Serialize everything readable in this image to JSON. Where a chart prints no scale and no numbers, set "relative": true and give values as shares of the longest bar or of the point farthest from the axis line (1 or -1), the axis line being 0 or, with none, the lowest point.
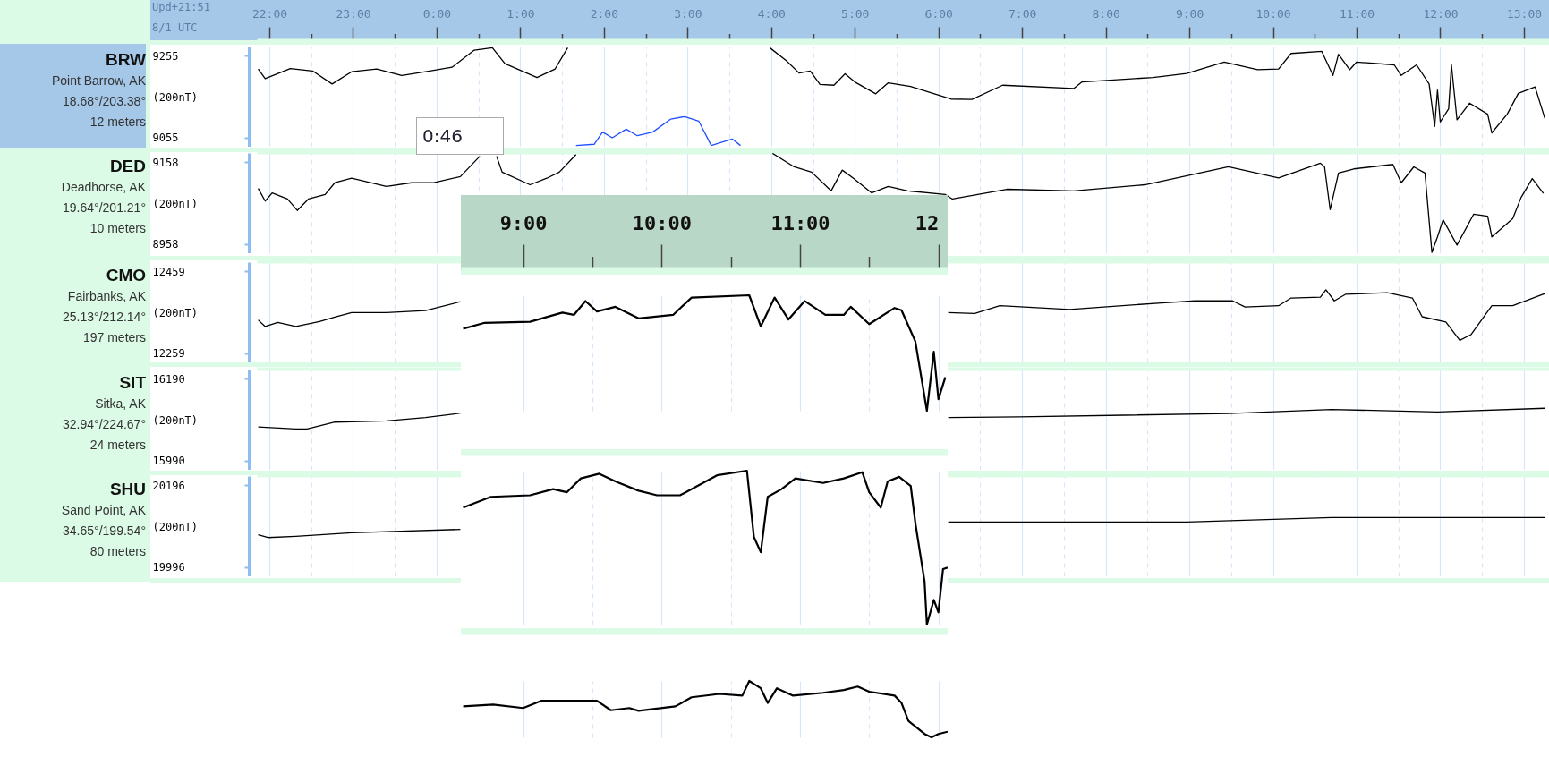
{
  "chart_data": [
    {
      "type": "line",
      "title": "BRW",
      "subtitle": "Point Barrow, AK",
      "ylabel": "(200nT)",
      "annotations": [
        "18.68°/203.38°",
        "12 meters",
        "Upd+21:51",
        "8/1 UTC",
        "0:46"
      ],
      "xlim": [
        "--08-01T21:51",
        "--08-02T13:18"
      ],
      "xticks": [
        {
          "value": "--08-01T22:00",
          "label": "22:00"
        },
        {
          "value": "--08-01T22:30",
          "label": null
        },
        {
          "value": "--08-01T23:00",
          "label": "23:00"
        },
        {
          "value": "--08-01T23:30",
          "label": null
        },
        {
          "value": "--08-02T00:00",
          "label": "0:00"
        },
        {
          "value": "--08-02T00:30",
          "label": null
        },
        {
          "value": "--08-02T01:00",
          "label": "1:00"
        },
        {
          "value": "--08-02T01:30",
          "label": null
        },
        {
          "value": "--08-02T02:00",
          "label": "2:00"
        },
        {
          "value": "--08-02T02:30",
          "label": null
        },
        {
          "value": "--08-02T03:00",
          "label": "3:00"
        },
        {
          "value": "--08-02T03:30",
          "label": null
        },
        {
          "value": "--08-02T04:00",
          "label": "4:00"
        },
        {
          "value": "--08-02T04:30",
          "label": null
        },
        {
          "value": "--08-02T05:00",
          "label": "5:00"
        },
        {
          "value": "--08-02T05:30",
          "label": null
        },
        {
          "value": "--08-02T06:00",
          "label": "6:00"
        },
        {
          "value": "--08-02T06:30",
          "label": null
        },
        {
          "value": "--08-02T07:00",
          "label": "7:00"
        },
        {
          "value": "--08-02T07:30",
          "label": null
        },
        {
          "value": "--08-02T08:00",
          "label": "8:00"
        },
        {
          "value": "--08-02T08:30",
          "label": null
        },
        {
          "value": "--08-02T09:00",
          "label": "9:00"
        },
        {
          "value": "--08-02T09:30",
          "label": null
        },
        {
          "value": "--08-02T10:00",
          "label": "10:00"
        },
        {
          "value": "--08-02T10:30",
          "label": null
        },
        {
          "value": "--08-02T11:00",
          "label": "11:00"
        },
        {
          "value": "--08-02T11:30",
          "label": null
        },
        {
          "value": "--08-02T12:00",
          "label": "12:00"
        },
        {
          "value": "--08-02T12:30",
          "label": null
        },
        {
          "value": "--08-02T13:00",
          "label": "13:00"
        }
      ],
      "ylim": [
        9032,
        9278
      ],
      "yticks": [
        9055,
        9255
      ],
      "grid": "x",
      "series": [
        {
          "color": "#000000",
          "x": [
            "--08-01T21:52",
            "--08-01T21:57",
            "--08-01T22:15",
            "--08-01T22:31",
            "--08-01T22:45",
            "--08-01T22:59",
            "--08-01T23:17",
            "--08-01T23:35",
            "--08-01T23:55",
            "--08-02T00:11",
            "--08-02T00:27",
            "--08-02T00:40",
            "--08-02T00:49",
            "--08-02T01:12",
            "--08-02T01:25",
            "--08-02T01:34",
            "--08-02T01:40",
            "--08-02T01:42",
            "--08-02T03:39",
            "--08-02T03:59",
            "--08-02T04:11",
            "--08-02T04:20",
            "--08-02T04:28",
            "--08-02T04:35",
            "--08-02T04:45",
            "--08-02T04:53",
            "--08-02T05:00",
            "--08-02T05:15",
            "--08-02T05:24",
            "--08-02T05:40",
            "--08-02T06:09",
            "--08-02T06:24",
            "--08-02T06:46",
            "--08-02T07:37",
            "--08-02T07:43",
            "--08-02T08:34",
            "--08-02T08:58",
            "--08-02T09:25",
            "--08-02T09:49",
            "--08-02T10:04",
            "--08-02T10:13",
            "--08-02T10:35",
            "--08-02T10:43",
            "--08-02T10:47",
            "--08-02T10:55",
            "--08-02T11:00",
            "--08-02T11:27",
            "--08-02T11:32",
            "--08-02T11:43",
            "--08-02T11:52",
            "--08-02T11:56",
            "--08-02T11:58",
            "--08-02T12:00",
            "--08-02T12:06",
            "--08-02T12:08",
            "--08-02T12:12",
            "--08-02T12:21",
            "--08-02T12:34",
            "--08-02T12:37",
            "--08-02T12:48",
            "--08-02T12:56",
            "--08-02T13:08",
            "--08-02T13:15"
          ],
          "values": [
            9223,
            9199,
            9224,
            9218,
            9186,
            9216,
            9223,
            9207,
            9218,
            9227,
            9269,
            9275,
            9236,
            9202,
            9223,
            9275,
            null,
            null,
            null,
            9275,
            9243,
            9213,
            9218,
            9185,
            9183,
            9211,
            9191,
            9162,
            9189,
            9180,
            9149,
            9148,
            9183,
            9175,
            9191,
            9202,
            9212,
            9240,
            9221,
            9223,
            9261,
            9266,
            9207,
            9259,
            9221,
            9240,
            9233,
            9207,
            9233,
            9186,
            9082,
            9171,
            9093,
            9125,
            9233,
            9098,
            9139,
            9112,
            9066,
            9112,
            9163,
            9179,
            9102
          ]
        },
        {
          "color": "#1f4fff",
          "x": [
            "--08-02T01:40",
            "--08-02T01:53",
            "--08-02T01:59",
            "--08-02T02:06",
            "--08-02T02:16",
            "--08-02T02:24",
            "--08-02T02:35",
            "--08-02T02:48",
            "--08-02T02:58",
            "--08-02T03:08",
            "--08-02T03:17",
            "--08-02T03:32",
            "--08-02T03:38"
          ],
          "values": [
            9035,
            9038,
            9068,
            9054,
            9075,
            9059,
            9068,
            9100,
            9106,
            9095,
            9035,
            9051,
            9035
          ]
        }
      ]
    },
    {
      "type": "line",
      "title": "DED",
      "subtitle": "Deadhorse, AK",
      "ylabel": "(200nT)",
      "annotations": [
        "19.64°/201.21°",
        "10 meters"
      ],
      "xlim": [
        "--08-01T21:51",
        "--08-02T13:18"
      ],
      "xticks": [
        {
          "value": "--08-01T22:00",
          "label": "22:00"
        },
        {
          "value": "--08-01T22:30",
          "label": null
        },
        {
          "value": "--08-01T23:00",
          "label": "23:00"
        },
        {
          "value": "--08-01T23:30",
          "label": null
        },
        {
          "value": "--08-02T00:00",
          "label": "0:00"
        },
        {
          "value": "--08-02T00:30",
          "label": null
        },
        {
          "value": "--08-02T01:00",
          "label": "1:00"
        },
        {
          "value": "--08-02T01:30",
          "label": null
        },
        {
          "value": "--08-02T02:00",
          "label": "2:00"
        },
        {
          "value": "--08-02T02:30",
          "label": null
        },
        {
          "value": "--08-02T03:00",
          "label": "3:00"
        },
        {
          "value": "--08-02T03:30",
          "label": null
        },
        {
          "value": "--08-02T04:00",
          "label": "4:00"
        },
        {
          "value": "--08-02T04:30",
          "label": null
        },
        {
          "value": "--08-02T05:00",
          "label": "5:00"
        },
        {
          "value": "--08-02T05:30",
          "label": null
        },
        {
          "value": "--08-02T06:00",
          "label": "6:00"
        },
        {
          "value": "--08-02T06:30",
          "label": null
        },
        {
          "value": "--08-02T07:00",
          "label": "7:00"
        },
        {
          "value": "--08-02T07:30",
          "label": null
        },
        {
          "value": "--08-02T08:00",
          "label": "8:00"
        },
        {
          "value": "--08-02T08:30",
          "label": null
        },
        {
          "value": "--08-02T09:00",
          "label": "9:00"
        },
        {
          "value": "--08-02T09:30",
          "label": null
        },
        {
          "value": "--08-02T10:00",
          "label": "10:00"
        },
        {
          "value": "--08-02T10:30",
          "label": null
        },
        {
          "value": "--08-02T11:00",
          "label": "11:00"
        },
        {
          "value": "--08-02T11:30",
          "label": null
        },
        {
          "value": "--08-02T12:00",
          "label": "12:00"
        },
        {
          "value": "--08-02T12:30",
          "label": null
        },
        {
          "value": "--08-02T13:00",
          "label": "13:00"
        }
      ],
      "ylim": [
        8935,
        9181
      ],
      "yticks": [
        8958,
        9158
      ],
      "grid": "x",
      "tick_labels": "y",
      "series": [
        {
          "color": "#000000",
          "x": [
            "--08-01T21:52",
            "--08-01T21:57",
            "--08-01T22:02",
            "--08-01T22:13",
            "--08-01T22:20",
            "--08-01T22:28",
            "--08-01T22:40",
            "--08-01T22:47",
            "--08-01T22:59",
            "--08-01T23:24",
            "--08-01T23:42",
            "--08-01T23:58",
            "--08-02T00:17",
            "--08-02T00:31",
            "--08-02T00:33",
            "--08-02T00:43",
            "--08-02T00:47",
            "--08-02T01:07",
            "--08-02T01:19",
            "--08-02T01:28",
            "--08-02T01:40",
            "--08-02T01:42",
            "--08-02T01:45",
            "--08-02T04:01",
            "--08-02T04:16",
            "--08-02T04:29",
            "--08-02T04:43",
            "--08-02T04:51",
            "--08-02T04:59",
            "--08-02T05:12",
            "--08-02T05:24",
            "--08-02T05:38",
            "--08-02T06:05",
            "--08-02T06:10",
            "--08-02T06:49",
            "--08-02T07:37",
            "--08-02T08:28",
            "--08-02T09:28",
            "--08-02T10:04",
            "--08-02T10:34",
            "--08-02T10:37",
            "--08-02T10:41",
            "--08-02T10:47",
            "--08-02T10:58",
            "--08-02T11:26",
            "--08-02T11:32",
            "--08-02T11:41",
            "--08-02T11:49",
            "--08-02T11:54",
            "--08-02T11:58",
            "--08-02T12:02",
            "--08-02T12:12",
            "--08-02T12:24",
            "--08-02T12:34",
            "--08-02T12:37",
            "--08-02T12:52",
            "--08-02T12:58",
            "--08-02T13:06",
            "--08-02T13:14"
          ],
          "values": [
            9094,
            9063,
            9083,
            9068,
            9040,
            9068,
            9079,
            9108,
            9119,
            9099,
            9108,
            9108,
            9123,
            9173,
            null,
            9173,
            9134,
            9103,
            9119,
            9134,
            9177,
            null,
            null,
            9180,
            9148,
            9134,
            9088,
            9139,
            9119,
            9083,
            9099,
            9088,
            9079,
            9068,
            9092,
            9088,
            9103,
            9147,
            9120,
            9156,
            9147,
            9042,
            9132,
            9142,
            9153,
            9108,
            9147,
            9132,
            8937,
            8975,
            9017,
            8955,
            9031,
            9026,
            8975,
            9020,
            9072,
            9118,
            9082
          ]
        }
      ]
    },
    {
      "type": "line",
      "title": "CMO",
      "subtitle": "Fairbanks, AK",
      "ylabel": "(200nT)",
      "annotations": [
        "25.13°/212.14°",
        "197 meters"
      ],
      "xlim": [
        "--08-01T21:51",
        "--08-02T13:18"
      ],
      "xticks": [
        {
          "value": "--08-01T22:00",
          "label": "22:00"
        },
        {
          "value": "--08-01T22:30",
          "label": null
        },
        {
          "value": "--08-01T23:00",
          "label": "23:00"
        },
        {
          "value": "--08-01T23:30",
          "label": null
        },
        {
          "value": "--08-02T00:00",
          "label": "0:00"
        },
        {
          "value": "--08-02T01:00",
          "label": "1:00"
        },
        {
          "value": "--08-02T02:00",
          "label": "2:00"
        },
        {
          "value": "--08-02T03:00",
          "label": "3:00"
        },
        {
          "value": "--08-02T04:00",
          "label": "4:00"
        },
        {
          "value": "--08-02T05:00",
          "label": "5:00"
        },
        {
          "value": "--08-02T06:00",
          "label": "6:00"
        },
        {
          "value": "--08-02T06:30",
          "label": null
        },
        {
          "value": "--08-02T07:00",
          "label": "7:00"
        },
        {
          "value": "--08-02T07:30",
          "label": null
        },
        {
          "value": "--08-02T08:00",
          "label": "8:00"
        },
        {
          "value": "--08-02T08:30",
          "label": null
        },
        {
          "value": "--08-02T09:00",
          "label": "9:00"
        },
        {
          "value": "--08-02T09:30",
          "label": null
        },
        {
          "value": "--08-02T10:00",
          "label": "10:00"
        },
        {
          "value": "--08-02T10:30",
          "label": null
        },
        {
          "value": "--08-02T11:00",
          "label": "11:00"
        },
        {
          "value": "--08-02T11:30",
          "label": null
        },
        {
          "value": "--08-02T12:00",
          "label": "12:00"
        },
        {
          "value": "--08-02T12:30",
          "label": null
        },
        {
          "value": "--08-02T13:00",
          "label": "13:00"
        }
      ],
      "ylim": [
        12236,
        12482
      ],
      "yticks": [
        12259,
        12459
      ],
      "grid": "x",
      "tick_labels": "y",
      "series": [
        {
          "color": "#000000",
          "x": [
            "--08-01T21:52",
            "--08-01T21:57",
            "--08-01T22:06",
            "--08-01T22:19",
            "--08-01T22:36",
            "--08-01T22:47",
            "--08-01T22:59",
            "--08-01T23:24",
            "--08-01T23:52",
            "--08-02T00:17",
            "--08-02T03:00",
            "--08-02T06:07",
            "--08-02T06:26",
            "--08-02T06:44",
            "--08-02T07:34",
            "--08-02T08:40",
            "--08-02T09:04",
            "--08-02T09:31",
            "--08-02T09:40",
            "--08-02T10:04",
            "--08-02T10:13",
            "--08-02T10:34",
            "--08-02T10:38",
            "--08-02T10:44",
            "--08-02T10:52",
            "--08-02T11:22",
            "--08-02T11:40",
            "--08-02T11:47",
            "--08-02T12:04",
            "--08-02T12:14",
            "--08-02T12:22",
            "--08-02T12:37",
            "--08-02T12:52",
            "--08-02T13:15"
          ],
          "values": [
            12340,
            12324,
            12334,
            12324,
            12336,
            12347,
            12358,
            12358,
            12363,
            12385,
            null,
            12358,
            12356,
            12375,
            12366,
            12382,
            12387,
            12387,
            12372,
            12375,
            12394,
            12396,
            12414,
            12387,
            12403,
            12407,
            12394,
            12348,
            12335,
            12290,
            12304,
            12375,
            12375,
            12405
          ]
        }
      ]
    },
    {
      "type": "line",
      "title": "SIT",
      "subtitle": "Sitka, AK",
      "ylabel": "(200nT)",
      "annotations": [
        "32.94°/224.67°",
        "24 meters"
      ],
      "xlim": [
        "--08-01T21:51",
        "--08-02T13:18"
      ],
      "xticks": [
        {
          "value": "--08-01T22:00",
          "label": "22:00"
        },
        {
          "value": "--08-01T22:30",
          "label": null
        },
        {
          "value": "--08-01T23:00",
          "label": "23:00"
        },
        {
          "value": "--08-01T23:30",
          "label": null
        },
        {
          "value": "--08-02T00:00",
          "label": "0:00"
        },
        {
          "value": "--08-02T01:00",
          "label": "1:00"
        },
        {
          "value": "--08-02T02:00",
          "label": "2:00"
        },
        {
          "value": "--08-02T03:00",
          "label": "3:00"
        },
        {
          "value": "--08-02T04:00",
          "label": "4:00"
        },
        {
          "value": "--08-02T05:00",
          "label": "5:00"
        },
        {
          "value": "--08-02T06:00",
          "label": "6:00"
        },
        {
          "value": "--08-02T06:30",
          "label": null
        },
        {
          "value": "--08-02T07:00",
          "label": "7:00"
        },
        {
          "value": "--08-02T07:30",
          "label": null
        },
        {
          "value": "--08-02T08:00",
          "label": "8:00"
        },
        {
          "value": "--08-02T08:30",
          "label": null
        },
        {
          "value": "--08-02T09:00",
          "label": "9:00"
        },
        {
          "value": "--08-02T09:30",
          "label": null
        },
        {
          "value": "--08-02T10:00",
          "label": "10:00"
        },
        {
          "value": "--08-02T10:30",
          "label": null
        },
        {
          "value": "--08-02T11:00",
          "label": "11:00"
        },
        {
          "value": "--08-02T11:30",
          "label": null
        },
        {
          "value": "--08-02T12:00",
          "label": "12:00"
        },
        {
          "value": "--08-02T12:30",
          "label": null
        },
        {
          "value": "--08-02T13:00",
          "label": "13:00"
        }
      ],
      "ylim": [
        15967,
        16213
      ],
      "yticks": [
        15990,
        16190
      ],
      "grid": "x",
      "tick_labels": "y",
      "series": [
        {
          "color": "#000000",
          "x": [
            "--08-01T21:52",
            "--08-01T22:19",
            "--08-01T22:27",
            "--08-01T22:47",
            "--08-01T23:24",
            "--08-01T23:52",
            "--08-02T00:17",
            "--08-02T03:00",
            "--08-02T06:07",
            "--08-02T06:58",
            "--08-02T09:28",
            "--08-02T10:42",
            "--08-02T11:58",
            "--08-02T13:15"
          ],
          "values": [
            16072,
            16067,
            16067,
            16084,
            16087,
            16095,
            16106,
            null,
            16095,
            16097,
            16105,
            16115,
            16109,
            16118
          ]
        }
      ]
    },
    {
      "type": "line",
      "title": "SHU",
      "subtitle": "Sand Point, AK",
      "ylabel": "(200nT)",
      "annotations": [
        "34.65°/199.54°",
        "80 meters"
      ],
      "xlim": [
        "--08-01T21:51",
        "--08-02T13:18"
      ],
      "xticks": [
        {
          "value": "--08-01T22:00",
          "label": "22:00"
        },
        {
          "value": "--08-01T22:30",
          "label": null
        },
        {
          "value": "--08-01T23:00",
          "label": "23:00"
        },
        {
          "value": "--08-01T23:30",
          "label": null
        },
        {
          "value": "--08-02T00:00",
          "label": "0:00"
        },
        {
          "value": "--08-02T01:00",
          "label": "1:00"
        },
        {
          "value": "--08-02T02:00",
          "label": "2:00"
        },
        {
          "value": "--08-02T03:00",
          "label": "3:00"
        },
        {
          "value": "--08-02T04:00",
          "label": "4:00"
        },
        {
          "value": "--08-02T05:00",
          "label": "5:00"
        },
        {
          "value": "--08-02T06:00",
          "label": "6:00"
        },
        {
          "value": "--08-02T06:30",
          "label": null
        },
        {
          "value": "--08-02T07:00",
          "label": "7:00"
        },
        {
          "value": "--08-02T07:30",
          "label": null
        },
        {
          "value": "--08-02T08:00",
          "label": "8:00"
        },
        {
          "value": "--08-02T08:30",
          "label": null
        },
        {
          "value": "--08-02T09:00",
          "label": "9:00"
        },
        {
          "value": "--08-02T09:30",
          "label": null
        },
        {
          "value": "--08-02T10:00",
          "label": "10:00"
        },
        {
          "value": "--08-02T10:30",
          "label": null
        },
        {
          "value": "--08-02T11:00",
          "label": "11:00"
        },
        {
          "value": "--08-02T11:30",
          "label": null
        },
        {
          "value": "--08-02T12:00",
          "label": "12:00"
        },
        {
          "value": "--08-02T12:30",
          "label": null
        },
        {
          "value": "--08-02T13:00",
          "label": "13:00"
        }
      ],
      "ylim": [
        19973,
        20219
      ],
      "yticks": [
        19996,
        20196
      ],
      "grid": "x",
      "tick_labels": "y",
      "series": [
        {
          "color": "#000000",
          "x": [
            "--08-01T21:52",
            "--08-01T21:59",
            "--08-01T22:19",
            "--08-01T22:59",
            "--08-02T00:17",
            "--08-02T03:00",
            "--08-02T06:07",
            "--08-02T08:58",
            "--08-02T10:42",
            "--08-02T13:15"
          ],
          "values": [
            20075,
            20068,
            20071,
            20080,
            20088,
            null,
            20106,
            20106,
            20117,
            20117
          ]
        }
      ]
    },
    {
      "type": "line",
      "relative": true,
      "grid": "x",
      "tick_labels": "x",
      "xlim": [
        "--08-02T08:33",
        "--08-02T12:04"
      ],
      "xticks": [
        {
          "value": "--08-02T09:00",
          "label": "9:00"
        },
        {
          "value": "--08-02T09:30",
          "label": null
        },
        {
          "value": "--08-02T10:00",
          "label": "10:00"
        },
        {
          "value": "--08-02T10:30",
          "label": null
        },
        {
          "value": "--08-02T11:00",
          "label": "11:00"
        },
        {
          "value": "--08-02T11:30",
          "label": null
        },
        {
          "value": "--08-02T12:00",
          "label": "12"
        }
      ],
      "series": [
        {
          "color": "#000000",
          "x": [
            "--08-02T08:34",
            "--08-02T08:43",
            "--08-02T09:03",
            "--08-02T09:17",
            "--08-02T09:22",
            "--08-02T09:27",
            "--08-02T09:32",
            "--08-02T09:40",
            "--08-02T09:50",
            "--08-02T10:05",
            "--08-02T10:13",
            "--08-02T10:38",
            "--08-02T10:43",
            "--08-02T10:49",
            "--08-02T10:55",
            "--08-02T11:02",
            "--08-02T11:11",
            "--08-02T11:19",
            "--08-02T11:22",
            "--08-02T11:30",
            "--08-02T11:41",
            "--08-02T11:44",
            "--08-02T11:50",
            "--08-02T11:55",
            "--08-02T11:58",
            "--08-02T12:00",
            "--08-02T12:03"
          ],
          "values": [
            0.71,
            0.76,
            0.77,
            0.85,
            0.83,
            0.95,
            0.86,
            0.9,
            0.8,
            0.83,
            0.98,
            1,
            0.73,
            0.98,
            0.79,
            0.95,
            0.83,
            0.83,
            0.9,
            0.75,
            0.89,
            0.87,
            0.6,
            0,
            0.51,
            0.1,
            0.29
          ]
        }
      ]
    },
    {
      "type": "line",
      "relative": true,
      "grid": "x",
      "tick_labels": false,
      "xlim": [
        "--08-02T08:33",
        "--08-02T12:04"
      ],
      "xticks": [
        {
          "value": "--08-02T09:00",
          "label": "9:00"
        },
        {
          "value": "--08-02T09:30",
          "label": null
        },
        {
          "value": "--08-02T10:00",
          "label": "10:00"
        },
        {
          "value": "--08-02T10:30",
          "label": null
        },
        {
          "value": "--08-02T11:00",
          "label": "11:00"
        },
        {
          "value": "--08-02T11:30",
          "label": null
        },
        {
          "value": "--08-02T12:00",
          "label": "12"
        }
      ],
      "series": [
        {
          "color": "#000000",
          "x": [
            "--08-02T08:34",
            "--08-02T08:46",
            "--08-02T09:03",
            "--08-02T09:13",
            "--08-02T09:19",
            "--08-02T09:25",
            "--08-02T09:33",
            "--08-02T09:40",
            "--08-02T09:50",
            "--08-02T09:58",
            "--08-02T10:08",
            "--08-02T10:24",
            "--08-02T10:37",
            "--08-02T10:40",
            "--08-02T10:43",
            "--08-02T10:46",
            "--08-02T10:52",
            "--08-02T10:58",
            "--08-02T11:10",
            "--08-02T11:19",
            "--08-02T11:27",
            "--08-02T11:30",
            "--08-02T11:35",
            "--08-02T11:38",
            "--08-02T11:43",
            "--08-02T11:48",
            "--08-02T11:50",
            "--08-02T11:54",
            "--08-02T11:55",
            "--08-02T11:58",
            "--08-02T12:00",
            "--08-02T12:02",
            "--08-02T12:04"
          ],
          "values": [
            0.76,
            0.83,
            0.84,
            0.88,
            0.86,
            0.95,
            0.98,
            0.93,
            0.87,
            0.84,
            0.84,
            0.97,
            1,
            0.57,
            0.47,
            0.83,
            0.88,
            0.95,
            0.92,
            0.95,
            0.99,
            0.86,
            0.76,
            0.93,
            0.96,
            0.9,
            0.66,
            0.28,
            0,
            0.16,
            0.08,
            0.36,
            0.37
          ]
        }
      ]
    },
    {
      "type": "line",
      "relative": true,
      "grid": "x",
      "tick_labels": false,
      "xlim": [
        "--08-02T08:33",
        "--08-02T12:04"
      ],
      "xticks": [
        {
          "value": "--08-02T09:00",
          "label": "9:00"
        },
        {
          "value": "--08-02T09:30",
          "label": null
        },
        {
          "value": "--08-02T10:00",
          "label": "10:00"
        },
        {
          "value": "--08-02T10:30",
          "label": null
        },
        {
          "value": "--08-02T11:00",
          "label": "11:00"
        },
        {
          "value": "--08-02T11:30",
          "label": null
        },
        {
          "value": "--08-02T12:00",
          "label": "12"
        }
      ],
      "series": [
        {
          "color": "#000000",
          "x": [
            "--08-02T08:34",
            "--08-02T08:47",
            "--08-02T09:00",
            "--08-02T09:08",
            "--08-02T09:32",
            "--08-02T09:38",
            "--08-02T09:46",
            "--08-02T09:50",
            "--08-02T10:06",
            "--08-02T10:13",
            "--08-02T10:25",
            "--08-02T10:35",
            "--08-02T10:38",
            "--08-02T10:43",
            "--08-02T10:46",
            "--08-02T10:50",
            "--08-02T10:57",
            "--08-02T11:10",
            "--08-02T11:19",
            "--08-02T11:25",
            "--08-02T11:30",
            "--08-02T11:41",
            "--08-02T11:44",
            "--08-02T11:47",
            "--08-02T11:54",
            "--08-02T11:57",
            "--08-02T12:00",
            "--08-02T12:04"
          ],
          "values": [
            0.55,
            0.58,
            0.52,
            0.65,
            0.65,
            0.48,
            0.52,
            0.47,
            0.55,
            0.71,
            0.77,
            0.74,
            1,
            0.87,
            0.61,
            0.87,
            0.74,
            0.79,
            0.84,
            0.9,
            0.81,
            0.74,
            0.61,
            0.29,
            0.06,
            0,
            0.06,
            0.1
          ]
        }
      ]
    }
  ]
}
